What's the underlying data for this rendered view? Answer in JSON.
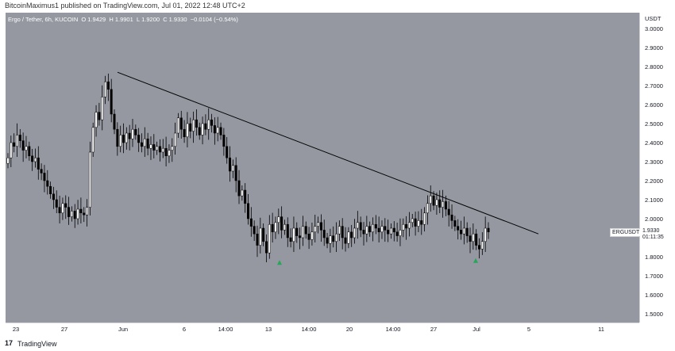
{
  "header": {
    "published_text": "BitcoinMaximus1 published on TradingView.com, Jul 01, 2022 12:48 UTC+2"
  },
  "legend": {
    "title": "Ergo / Tether, 6h, KUCOIN",
    "open_label": "O",
    "open": "1.9429",
    "high_label": "H",
    "high": "1.9901",
    "low_label": "L",
    "low": "1.9200",
    "close_label": "C",
    "close": "1.9330",
    "change": "−0.0104 (−0.54%)"
  },
  "price_axis": {
    "currency": "USDT",
    "ticks": [
      "3.0000",
      "2.9000",
      "2.8000",
      "2.7000",
      "2.6000",
      "2.5000",
      "2.4000",
      "2.3000",
      "2.2000",
      "2.1000",
      "2.0000",
      "1.8000",
      "1.7000",
      "1.6000",
      "1.5000"
    ]
  },
  "time_axis": {
    "ticks": [
      "23",
      "27",
      "Jun",
      "6",
      "14:00",
      "13",
      "14:00",
      "20",
      "14:00",
      "27",
      "Jul",
      "5",
      "11"
    ]
  },
  "last_price": {
    "symbol": "ERGUSDT",
    "price": "1.9330",
    "countdown": "01:11:35"
  },
  "footer": {
    "logo": "17",
    "brand": "TradingView"
  },
  "colors": {
    "background": "#9598a1",
    "candle_up": "#ffffff",
    "candle_down": "#000000",
    "trendline": "#000000",
    "marker": "#26a65b"
  },
  "chart_data": {
    "type": "candlestick",
    "symbol": "ERGUSDT",
    "ylim": [
      1.45,
      3.05
    ],
    "trendline": {
      "from": {
        "date": "2022-05-30",
        "price": 2.77
      },
      "to": {
        "date": "2022-07-05",
        "price": 1.92
      }
    },
    "markers": [
      {
        "date": "2022-06-14",
        "price": 1.77,
        "shape": "triangle-up"
      },
      {
        "date": "2022-06-30",
        "price": 1.78,
        "shape": "triangle-up"
      }
    ],
    "closes": [
      2.32,
      2.4,
      2.38,
      2.44,
      2.41,
      2.36,
      2.38,
      2.33,
      2.3,
      2.32,
      2.26,
      2.24,
      2.2,
      2.17,
      2.13,
      2.1,
      2.06,
      2.03,
      2.08,
      2.06,
      2.01,
      2.04,
      2.0,
      2.05,
      2.03,
      2.02,
      2.06,
      2.35,
      2.48,
      2.56,
      2.52,
      2.64,
      2.72,
      2.68,
      2.55,
      2.47,
      2.38,
      2.44,
      2.4,
      2.45,
      2.42,
      2.47,
      2.44,
      2.4,
      2.38,
      2.42,
      2.37,
      2.39,
      2.36,
      2.38,
      2.35,
      2.37,
      2.33,
      2.36,
      2.38,
      2.45,
      2.53,
      2.47,
      2.43,
      2.5,
      2.46,
      2.52,
      2.48,
      2.44,
      2.5,
      2.47,
      2.52,
      2.49,
      2.45,
      2.48,
      2.44,
      2.38,
      2.32,
      2.25,
      2.28,
      2.2,
      2.12,
      2.15,
      2.08,
      2.0,
      1.96,
      1.92,
      1.86,
      1.95,
      1.88,
      1.82,
      1.97,
      1.93,
      1.98,
      2.01,
      1.94,
      1.97,
      1.9,
      1.88,
      1.95,
      1.91,
      1.9,
      1.96,
      1.92,
      1.89,
      1.93,
      1.96,
      1.98,
      1.94,
      1.9,
      1.87,
      1.91,
      1.88,
      1.92,
      1.96,
      1.9,
      1.87,
      1.93,
      1.9,
      1.95,
      1.98,
      1.94,
      1.92,
      1.96,
      1.93,
      1.97,
      1.95,
      1.93,
      1.96,
      1.94,
      1.92,
      1.95,
      1.93,
      1.91,
      1.94,
      1.97,
      1.95,
      1.98,
      2.0,
      1.96,
      1.99,
      1.97,
      2.03,
      2.08,
      2.12,
      2.07,
      2.1,
      2.06,
      2.09,
      2.05,
      2.02,
      1.99,
      1.96,
      1.94,
      1.92,
      1.95,
      1.91,
      1.88,
      1.92,
      1.86,
      1.84,
      1.88,
      1.95,
      1.93
    ]
  }
}
